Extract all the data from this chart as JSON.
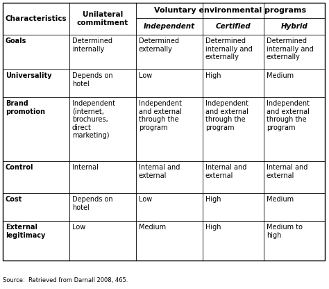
{
  "source_text": "Source:  Retrieved from Darnall 2008, 465.",
  "super_header": "Voluntary environmental programs",
  "col0_header": "Characteristics",
  "col1_header": "Unilateral\ncommitment",
  "sub_headers": [
    "Independent",
    "Certified",
    "Hybrid"
  ],
  "rows": [
    [
      "Goals",
      "Determined\ninternally",
      "Determined\nexternally",
      "Determined\ninternally and\nexternally",
      "Determined\ninternally and\nexternally"
    ],
    [
      "Universality",
      "Depends on\nhotel",
      "Low",
      "High",
      "Medium"
    ],
    [
      "Brand\npromotion",
      "Independent\n(internet,\nbrochures,\ndirect\nmarketing)",
      "Independent\nand external\nthrough the\nprogram",
      "Independent\nand external\nthrough the\nprogram",
      "Independent\nand external\nthrough the\nprogram"
    ],
    [
      "Control",
      "Internal",
      "Internal and\nexternal",
      "Internal and\nexternal",
      "Internal and\nexternal"
    ],
    [
      "Cost",
      "Depends on\nhotel",
      "Low",
      "High",
      "Medium"
    ],
    [
      "External\nlegitimacy",
      "Low",
      "Medium",
      "High",
      "Medium to\nhigh"
    ]
  ],
  "background_color": "#ffffff",
  "font_size_data": 7.0,
  "font_size_header": 7.5,
  "font_size_super": 8.0,
  "font_size_source": 6.0
}
